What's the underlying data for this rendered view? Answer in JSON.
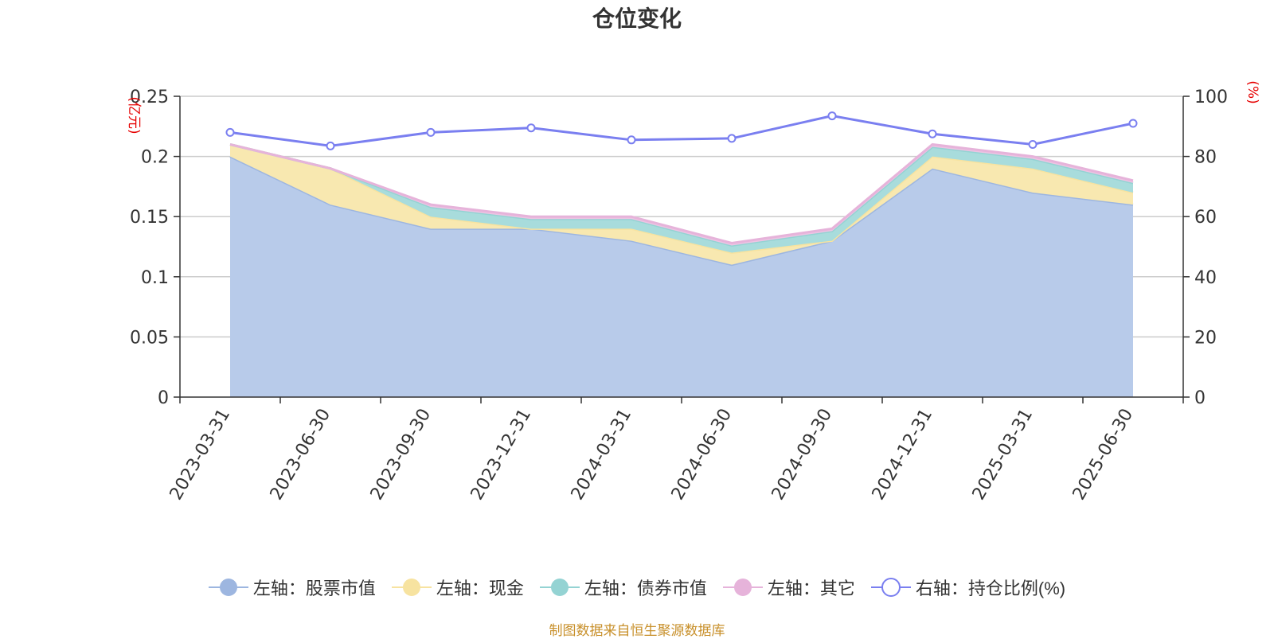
{
  "chart_data": {
    "type": "area",
    "title": "仓位变化",
    "categories": [
      "2023-03-31",
      "2023-06-30",
      "2023-09-30",
      "2023-12-31",
      "2024-03-31",
      "2024-06-30",
      "2024-09-30",
      "2024-12-31",
      "2025-03-31",
      "2025-06-30"
    ],
    "left_axis": {
      "unit_label": "(亿元)",
      "ylim": [
        0,
        0.25
      ],
      "ticks": [
        "0",
        "0.05",
        "0.1",
        "0.15",
        "0.2",
        "0.25"
      ],
      "tick_values": [
        0,
        0.05,
        0.1,
        0.15,
        0.2,
        0.25
      ]
    },
    "right_axis": {
      "unit_label": "(%)",
      "ylim": [
        0,
        100
      ],
      "ticks": [
        "0",
        "20",
        "40",
        "60",
        "80",
        "100"
      ],
      "tick_values": [
        0,
        20,
        40,
        60,
        80,
        100
      ]
    },
    "grid": true,
    "legend_position": "bottom",
    "stacked_series": [
      {
        "name": "左轴：股票市值",
        "axis": "left",
        "color": "#9db6e0",
        "fill": "#b8cbea",
        "values": [
          0.2,
          0.16,
          0.14,
          0.14,
          0.13,
          0.11,
          0.13,
          0.19,
          0.17,
          0.16
        ]
      },
      {
        "name": "左轴：现金",
        "axis": "left",
        "color": "#f7e3a0",
        "fill": "#f8e8b0",
        "values": [
          0.01,
          0.03,
          0.01,
          0.0,
          0.01,
          0.01,
          0.0,
          0.01,
          0.02,
          0.01
        ]
      },
      {
        "name": "左轴：债券市值",
        "axis": "left",
        "color": "#94d3d3",
        "fill": "#a8dcdc",
        "values": [
          0.0,
          0.0,
          0.008,
          0.008,
          0.008,
          0.006,
          0.008,
          0.008,
          0.008,
          0.008
        ]
      },
      {
        "name": "左轴：其它",
        "axis": "left",
        "color": "#e6b3da",
        "fill": "#edc4e3",
        "values": [
          0.0,
          0.0,
          0.002,
          0.002,
          0.002,
          0.002,
          0.002,
          0.002,
          0.002,
          0.002
        ]
      }
    ],
    "line_series": [
      {
        "name": "右轴：持仓比例(%)",
        "axis": "right",
        "color": "#7a7ff0",
        "values": [
          88.0,
          83.5,
          88.0,
          89.5,
          85.5,
          86.0,
          93.5,
          87.5,
          84.0,
          91.0
        ]
      }
    ]
  },
  "legend": {
    "items": [
      {
        "label": "左轴：股票市值",
        "color": "#9db6e0",
        "style": "filled"
      },
      {
        "label": "左轴：现金",
        "color": "#f7e3a0",
        "style": "filled"
      },
      {
        "label": "左轴：债券市值",
        "color": "#94d3d3",
        "style": "filled"
      },
      {
        "label": "左轴：其它",
        "color": "#e6b3da",
        "style": "filled"
      },
      {
        "label": "右轴：持仓比例(%)",
        "color": "#7a7ff0",
        "style": "hollow"
      }
    ]
  },
  "footer": {
    "source": "制图数据来自恒生聚源数据库"
  },
  "colors": {
    "axis_unit_label": "#e60000",
    "axis_text": "#333333",
    "grid": "#cccccc"
  }
}
